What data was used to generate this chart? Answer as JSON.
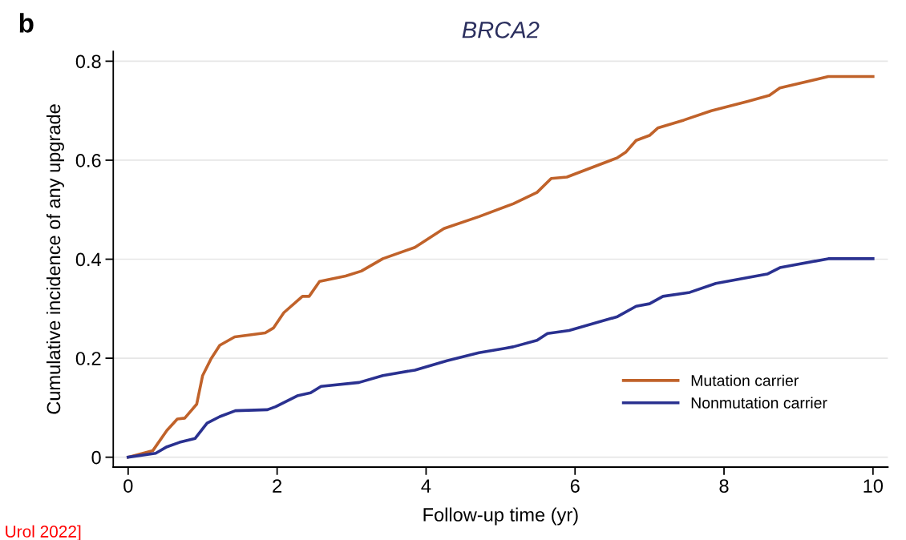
{
  "chart_data": {
    "type": "line",
    "title": "BRCA2",
    "xlabel": "Follow-up time (yr)",
    "ylabel": "Cumulative incidence of any upgrade",
    "annotations": [
      "b",
      "Urol 2022]"
    ],
    "xlim": [
      -0.2,
      10.2
    ],
    "ylim": [
      -0.02,
      0.82
    ],
    "xticks": [
      0,
      2,
      4,
      6,
      8,
      10
    ],
    "yticks": [
      0,
      0.2,
      0.4,
      0.6,
      0.8
    ],
    "grid": "y",
    "legend": "bottom right",
    "line_style": "solid",
    "marker": "none",
    "series": [
      {
        "name": "Mutation carrier",
        "color": "#c0622a",
        "x": [
          0,
          0.33,
          0.52,
          0.66,
          0.76,
          0.92,
          1.0,
          1.11,
          1.23,
          1.43,
          1.84,
          1.95,
          2.09,
          2.34,
          2.43,
          2.57,
          2.92,
          3.13,
          3.42,
          3.85,
          4.24,
          4.71,
          5.17,
          5.49,
          5.68,
          5.89,
          6.57,
          6.68,
          6.82,
          7.0,
          7.11,
          7.46,
          7.83,
          8.32,
          8.61,
          8.75,
          9.4,
          10.0
        ],
        "values": [
          0,
          0.013,
          0.054,
          0.077,
          0.079,
          0.107,
          0.165,
          0.198,
          0.226,
          0.243,
          0.251,
          0.261,
          0.292,
          0.325,
          0.325,
          0.355,
          0.366,
          0.376,
          0.401,
          0.424,
          0.462,
          0.486,
          0.512,
          0.535,
          0.563,
          0.566,
          0.605,
          0.616,
          0.64,
          0.65,
          0.665,
          0.681,
          0.7,
          0.719,
          0.731,
          0.746,
          0.769,
          0.769
        ]
      },
      {
        "name": "Nonmutation carrier",
        "color": "#2a3190",
        "x": [
          0,
          0.37,
          0.52,
          0.69,
          0.9,
          1.06,
          1.23,
          1.44,
          1.87,
          1.98,
          2.27,
          2.45,
          2.59,
          3.1,
          3.42,
          3.85,
          4.28,
          4.71,
          5.06,
          5.17,
          5.49,
          5.63,
          5.92,
          6.57,
          6.82,
          7.0,
          7.18,
          7.54,
          7.89,
          8.58,
          8.75,
          9.4,
          10.0
        ],
        "values": [
          0,
          0.008,
          0.021,
          0.03,
          0.038,
          0.069,
          0.082,
          0.094,
          0.096,
          0.102,
          0.124,
          0.13,
          0.143,
          0.151,
          0.165,
          0.176,
          0.195,
          0.211,
          0.22,
          0.223,
          0.236,
          0.25,
          0.256,
          0.284,
          0.305,
          0.31,
          0.325,
          0.333,
          0.351,
          0.37,
          0.383,
          0.401,
          0.401
        ]
      }
    ]
  }
}
